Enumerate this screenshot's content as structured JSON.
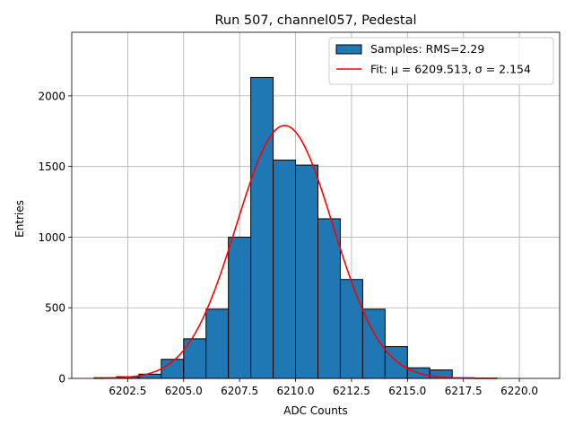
{
  "chart_data": {
    "type": "bar",
    "title": "Run 507, channel057, Pedestal",
    "xlabel": "ADC Counts",
    "ylabel": "Entries",
    "xlim": [
      6200.0,
      6221.8
    ],
    "ylim": [
      0,
      2450
    ],
    "xticks": [
      6202.5,
      6205.0,
      6207.5,
      6210.0,
      6212.5,
      6215.0,
      6217.5,
      6220.0
    ],
    "xtick_labels": [
      "6202.5",
      "6205.0",
      "6207.5",
      "6210.0",
      "6212.5",
      "6215.0",
      "6217.5",
      "6220.0"
    ],
    "yticks": [
      0,
      500,
      1000,
      1500,
      2000
    ],
    "ytick_labels": [
      "0",
      "500",
      "1000",
      "1500",
      "2000"
    ],
    "grid": true,
    "legend_position": "top-right",
    "bar_width": 1,
    "bars": [
      {
        "x": 6201,
        "value": 5
      },
      {
        "x": 6202,
        "value": 12
      },
      {
        "x": 6203,
        "value": 30
      },
      {
        "x": 6204,
        "value": 135
      },
      {
        "x": 6205,
        "value": 280
      },
      {
        "x": 6206,
        "value": 490
      },
      {
        "x": 6207,
        "value": 1000
      },
      {
        "x": 6208,
        "value": 2130
      },
      {
        "x": 6209,
        "value": 1545
      },
      {
        "x": 6210,
        "value": 1510
      },
      {
        "x": 6211,
        "value": 1130
      },
      {
        "x": 6212,
        "value": 700
      },
      {
        "x": 6213,
        "value": 490
      },
      {
        "x": 6214,
        "value": 225
      },
      {
        "x": 6215,
        "value": 75
      },
      {
        "x": 6216,
        "value": 60
      },
      {
        "x": 6217,
        "value": 5
      },
      {
        "x": 6218,
        "value": 2
      }
    ],
    "fit": {
      "mu": 6209.513,
      "sigma": 2.154,
      "amplitude": 1790,
      "x_range": [
        6201,
        6219
      ]
    },
    "series": [
      {
        "name": "Samples: RMS=2.29",
        "type": "bar",
        "color": "#1f77b4",
        "edgecolor": "#000000"
      },
      {
        "name": "Fit: μ = 6209.513, σ = 2.154",
        "type": "line",
        "color": "#ff0000"
      }
    ]
  }
}
